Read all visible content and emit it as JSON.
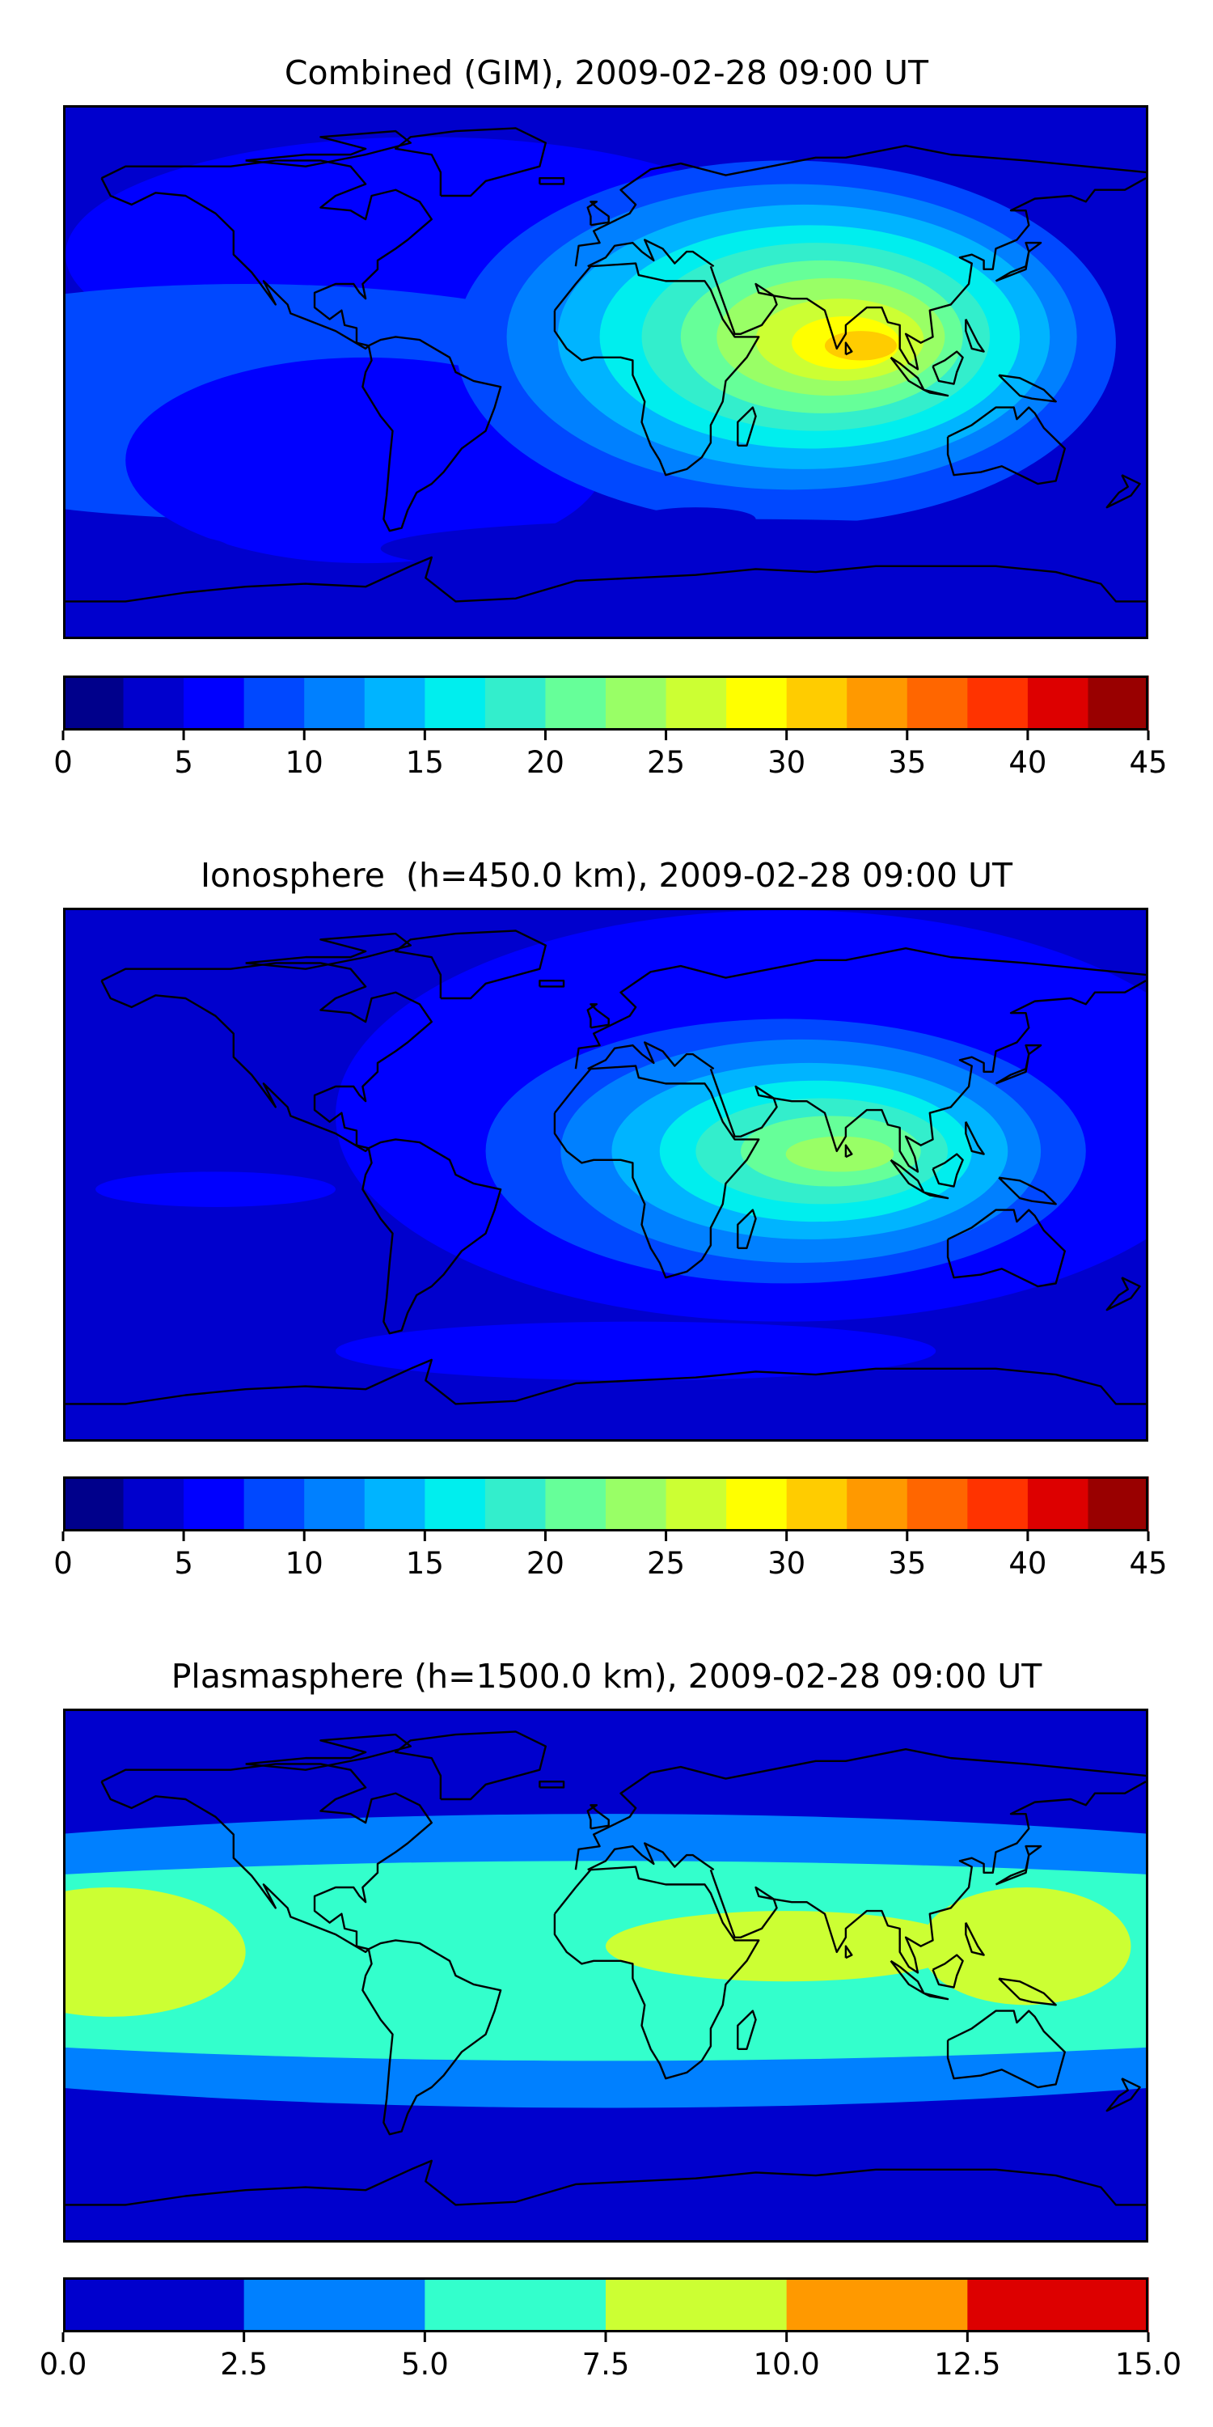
{
  "chart_data": [
    {
      "type": "heatmap",
      "title": "Combined (GIM), 2009-02-28 09:00 UT",
      "map": "world coastlines, equirectangular projection",
      "colormap": "jet",
      "colorbar": {
        "ticks": [
          "0",
          "5",
          "10",
          "15",
          "20",
          "25",
          "30",
          "35",
          "40",
          "45"
        ],
        "range": [
          0,
          45
        ],
        "levels": [
          0,
          2.5,
          5,
          7.5,
          10,
          12.5,
          15,
          17.5,
          20,
          22.5,
          25,
          27.5,
          30,
          32.5,
          35,
          37.5,
          40,
          42.5,
          45
        ],
        "colors": [
          "#00008b",
          "#0000cd",
          "#0000ff",
          "#0048ff",
          "#0080ff",
          "#00b4ff",
          "#00eeee",
          "#33eecc",
          "#66ff99",
          "#99ff66",
          "#ccff33",
          "#ffff00",
          "#ffcc00",
          "#ff9900",
          "#ff6600",
          "#ff3300",
          "#dd0000",
          "#990000"
        ]
      },
      "field": {
        "background_level": 5,
        "peak_value": 32,
        "peak_region": "Indian Ocean / South Asia (lon 80, lat 10)"
      }
    },
    {
      "type": "heatmap",
      "title": "Ionosphere  (h=450.0 km), 2009-02-28 09:00 UT",
      "map": "world coastlines, equirectangular projection",
      "colormap": "jet",
      "colorbar": {
        "ticks": [
          "0",
          "5",
          "10",
          "15",
          "20",
          "25",
          "30",
          "35",
          "40",
          "45"
        ],
        "range": [
          0,
          45
        ],
        "levels": [
          0,
          2.5,
          5,
          7.5,
          10,
          12.5,
          15,
          17.5,
          20,
          22.5,
          25,
          27.5,
          30,
          32.5,
          35,
          37.5,
          40,
          42.5,
          45
        ],
        "colors": [
          "#00008b",
          "#0000cd",
          "#0000ff",
          "#0048ff",
          "#0080ff",
          "#00b4ff",
          "#00eeee",
          "#33eecc",
          "#66ff99",
          "#99ff66",
          "#ccff33",
          "#ffff00",
          "#ffcc00",
          "#ff9900",
          "#ff6600",
          "#ff3300",
          "#dd0000",
          "#990000"
        ]
      },
      "field": {
        "background_level": 2.5,
        "peak_value": 24,
        "peak_region": "Indian Ocean / South Asia (lon 70, lat 5)"
      }
    },
    {
      "type": "heatmap",
      "title": "Plasmasphere (h=1500.0 km), 2009-02-28 09:00 UT",
      "map": "world coastlines, equirectangular projection",
      "colormap": "jet",
      "colorbar": {
        "ticks": [
          "0.0",
          "2.5",
          "5.0",
          "7.5",
          "10.0",
          "12.5",
          "15.0"
        ],
        "range": [
          0,
          15
        ],
        "levels": [
          0,
          2.5,
          5,
          7.5,
          10,
          12.5,
          15
        ],
        "colors": [
          "#0000cd",
          "#0080ff",
          "#33ffcc",
          "#ccff33",
          "#ff9900",
          "#dd0000"
        ]
      },
      "field": {
        "background_level": 0,
        "peak_value": 9.5,
        "peak_region": "equatorial band, maxima over Pacific, Africa and western Pacific"
      }
    }
  ]
}
